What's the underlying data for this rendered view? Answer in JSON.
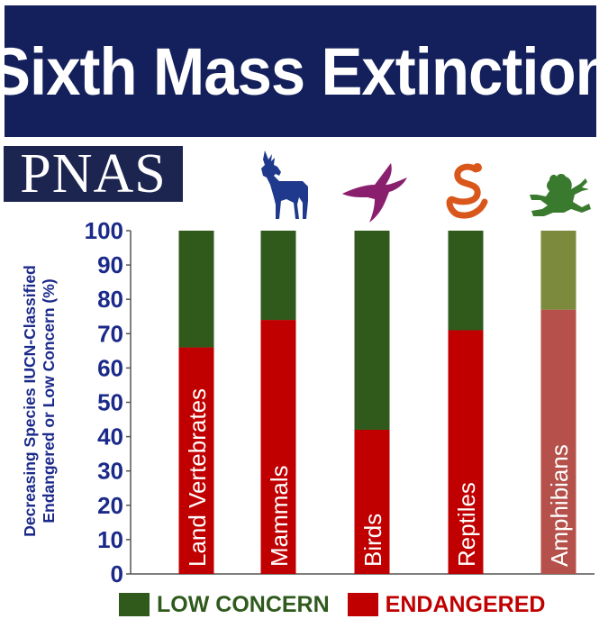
{
  "header": {
    "title": "Sixth Mass Extinction",
    "badge": "PNAS"
  },
  "icons": [
    "deer-icon",
    "bird-icon",
    "snake-icon",
    "frog-icon"
  ],
  "colors": {
    "low_concern": "#2f5a1c",
    "endangered": "#c00000",
    "amphibian_low": "#7b8a3c",
    "amphibian_end": "#b5504a",
    "deer": "#1f3a8c",
    "bird": "#8a1f6e",
    "snake": "#d9571a",
    "frog": "#3a7a2e"
  },
  "chart_data": {
    "type": "bar",
    "stacked": true,
    "categories": [
      "Land Vertebrates",
      "Mammals",
      "Birds",
      "Reptiles",
      "Amphibians"
    ],
    "series": [
      {
        "name": "ENDANGERED",
        "values": [
          66,
          74,
          42,
          71,
          77
        ]
      },
      {
        "name": "LOW CONCERN",
        "values": [
          34,
          26,
          58,
          29,
          23
        ]
      }
    ],
    "ylabel": [
      "Decreasing Species IUCN-Classified",
      "Endangered or Low Concern (%)"
    ],
    "yticks": [
      0,
      10,
      20,
      30,
      40,
      50,
      60,
      70,
      80,
      90,
      100
    ],
    "ylim": [
      0,
      100
    ],
    "grid": false,
    "legend": "bottom"
  }
}
